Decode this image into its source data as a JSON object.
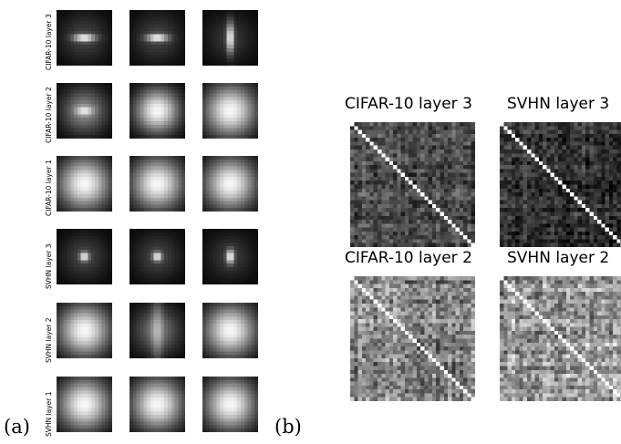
{
  "figure": {
    "panel_a_label": "(a)",
    "panel_b_label": "(b)",
    "panel_a": {
      "rows": [
        {
          "label": "CIFAR-10 layer 3",
          "kernels": [
            {
              "shape": "hstreak"
            },
            {
              "shape": "hstreak"
            },
            {
              "shape": "vstreak"
            }
          ]
        },
        {
          "label": "CIFAR-10 layer 2",
          "kernels": [
            {
              "shape": "hblob"
            },
            {
              "shape": "blob"
            },
            {
              "shape": "wide"
            }
          ]
        },
        {
          "label": "CIFAR-10 layer 1",
          "kernels": [
            {
              "shape": "wide"
            },
            {
              "shape": "wide"
            },
            {
              "shape": "wide"
            }
          ]
        },
        {
          "label": "SVHN layer 3",
          "kernels": [
            {
              "shape": "dot"
            },
            {
              "shape": "dot"
            },
            {
              "shape": "vdot"
            }
          ]
        },
        {
          "label": "SVHN layer 2",
          "kernels": [
            {
              "shape": "wide"
            },
            {
              "shape": "vbar"
            },
            {
              "shape": "wide"
            }
          ]
        },
        {
          "label": "SVHN layer 1",
          "kernels": [
            {
              "shape": "wide"
            },
            {
              "shape": "wide"
            },
            {
              "shape": "wide"
            }
          ]
        }
      ]
    },
    "panel_b": {
      "matrices": [
        {
          "title": "CIFAR-10 layer 3",
          "brightness": "dark"
        },
        {
          "title": "SVHN layer 3",
          "brightness": "darker"
        },
        {
          "title": "CIFAR-10 layer 2",
          "brightness": "mid"
        },
        {
          "title": "SVHN layer 2",
          "brightness": "bright"
        }
      ]
    }
  }
}
